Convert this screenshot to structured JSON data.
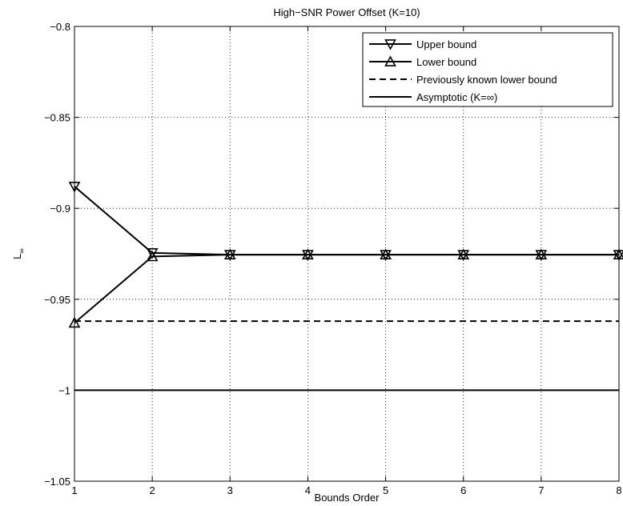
{
  "chart_data": {
    "type": "line",
    "title": "High−SNR Power Offset (K=10)",
    "xlabel": "Bounds Order",
    "ylabel": "L",
    "ylabel_subscript": "∞",
    "xlim": [
      1,
      8
    ],
    "ylim": [
      -1.05,
      -0.8
    ],
    "xticks": [
      1,
      2,
      3,
      4,
      5,
      6,
      7,
      8
    ],
    "xtick_labels": [
      "1",
      "2",
      "3",
      "4",
      "5",
      "6",
      "7",
      "8"
    ],
    "yticks": [
      -1.05,
      -1,
      -0.95,
      -0.9,
      -0.85,
      -0.8
    ],
    "ytick_labels": [
      "−1.05",
      "−1",
      "−0.95",
      "−0.9",
      "−0.85",
      "−0.8"
    ],
    "grid": true,
    "legend_position": "top-right",
    "series": [
      {
        "name": "Upper bound",
        "style": "solid",
        "marker": "triangle-down",
        "x": [
          1,
          2,
          3,
          4,
          5,
          6,
          7,
          8
        ],
        "y": [
          -0.888,
          -0.9245,
          -0.9255,
          -0.9255,
          -0.9255,
          -0.9255,
          -0.9255,
          -0.9255
        ]
      },
      {
        "name": "Lower bound",
        "style": "solid",
        "marker": "triangle-up",
        "x": [
          1,
          2,
          3,
          4,
          5,
          6,
          7,
          8
        ],
        "y": [
          -0.963,
          -0.9265,
          -0.9255,
          -0.9255,
          -0.9255,
          -0.9255,
          -0.9255,
          -0.9255
        ]
      },
      {
        "name": "Previously known lower bound",
        "style": "dashed",
        "marker": "none",
        "x": [
          1,
          8
        ],
        "y": [
          -0.962,
          -0.962
        ]
      },
      {
        "name": "Asymptotic (K=∞)",
        "style": "solid",
        "marker": "none",
        "x": [
          1,
          8
        ],
        "y": [
          -1.0,
          -1.0
        ]
      }
    ]
  }
}
